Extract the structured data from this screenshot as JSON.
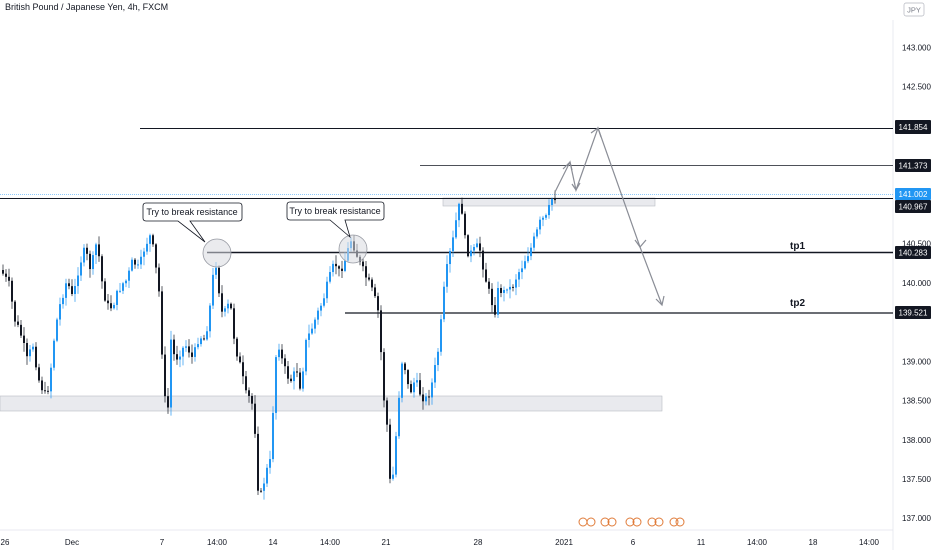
{
  "chart_title": "British Pound / Japanese Yen, 4h, FXCM",
  "currency_badge": "JPY",
  "chart_data": {
    "type": "candlestick",
    "title": "British Pound / Japanese Yen, 4h, FXCM",
    "y_range": [
      136.85,
      143.35
    ],
    "y_ticks": [
      "143.000",
      "142.500",
      "142.000",
      "141.500",
      "140.500",
      "140.000",
      "139.000",
      "138.500",
      "138.000",
      "137.500",
      "137.000"
    ],
    "x_ticks": [
      "26",
      "Dec",
      "7",
      "14:00",
      "14",
      "14:00",
      "21",
      "28",
      "2021",
      "6",
      "11",
      "14:00",
      "18",
      "14:00"
    ],
    "price_levels": [
      {
        "label": "141.854",
        "value": 141.854
      },
      {
        "label": "141.373",
        "value": 141.373
      },
      {
        "label": "141.002",
        "value": 141.002
      },
      {
        "label": "140.967",
        "value": 140.967
      },
      {
        "label": "140.283",
        "value": 140.283
      },
      {
        "label": "139.521",
        "value": 139.521
      }
    ],
    "annotations": [
      "Try to break resistance",
      "Try to break resistance"
    ],
    "targets": [
      "tp1",
      "tp2"
    ],
    "colors": {
      "up": "#2196f3",
      "down": "#131722",
      "last_price": "#2196f3"
    }
  },
  "icons": {
    "events": "event-markers-icon"
  }
}
